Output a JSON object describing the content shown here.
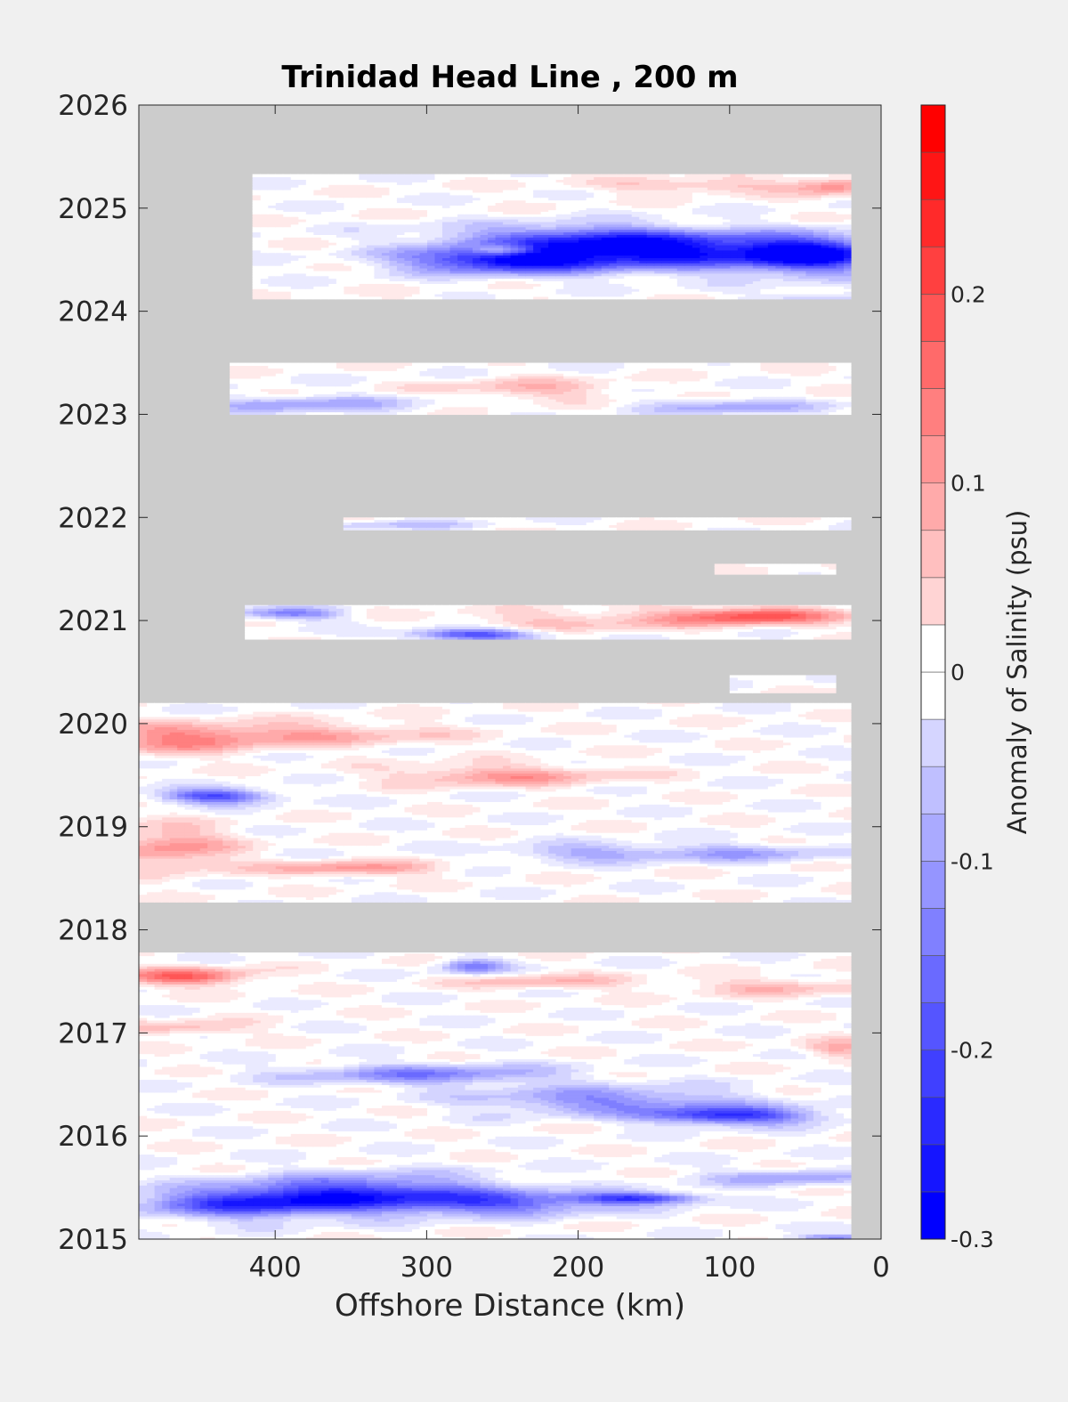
{
  "chart_data": {
    "type": "heatmap",
    "title": "Trinidad Head Line , 200 m",
    "xlabel": "Offshore Distance (km)",
    "ylabel": "",
    "colorbar_label": "Anomaly of Salinity (psu)",
    "x_reversed": true,
    "xlim": [
      490,
      0
    ],
    "ylim": [
      2015,
      2026
    ],
    "x_ticks": [
      "400",
      "300",
      "200",
      "100",
      "0"
    ],
    "x_tick_values": [
      400,
      300,
      200,
      100,
      0
    ],
    "y_ticks": [
      "2015",
      "2016",
      "2017",
      "2018",
      "2019",
      "2020",
      "2021",
      "2022",
      "2023",
      "2024",
      "2025",
      "2026"
    ],
    "y_tick_values": [
      2015,
      2016,
      2017,
      2018,
      2019,
      2020,
      2021,
      2022,
      2023,
      2024,
      2025,
      2026
    ],
    "colorbar": {
      "range": [
        -0.3,
        0.3
      ],
      "step": 0.025,
      "tick_labels": [
        "0.2",
        "0.1",
        "0",
        "-0.1",
        "-0.2",
        "-0.3"
      ],
      "tick_values": [
        0.2,
        0.1,
        0,
        -0.1,
        -0.2,
        -0.3
      ],
      "low_color": "#0000ff",
      "mid_color": "#ffffff",
      "high_color": "#ff0000"
    },
    "missing_color": "#cccccc",
    "grid": false,
    "data_bands": [
      {
        "t0": 2024.98,
        "t1": 2025.33,
        "x_max": 415,
        "x_min": 20
      },
      {
        "t0": 2024.12,
        "t1": 2024.98,
        "x_max": 415,
        "x_min": 20
      },
      {
        "t0": 2023.0,
        "t1": 2023.5,
        "x_max": 430,
        "x_min": 20
      },
      {
        "t0": 2021.88,
        "t1": 2022.0,
        "x_max": 355,
        "x_min": 20
      },
      {
        "t0": 2021.45,
        "t1": 2021.55,
        "x_max": 110,
        "x_min": 30
      },
      {
        "t0": 2020.82,
        "t1": 2021.15,
        "x_max": 420,
        "x_min": 20
      },
      {
        "t0": 2020.3,
        "t1": 2020.47,
        "x_max": 100,
        "x_min": 30
      },
      {
        "t0": 2018.27,
        "t1": 2020.2,
        "x_max": 490,
        "x_min": 20
      },
      {
        "t0": 2015.0,
        "t1": 2017.78,
        "x_max": 490,
        "x_min": 20
      }
    ],
    "anomaly_features": [
      {
        "x": 140,
        "t": 2024.58,
        "sx": 70,
        "st": 0.12,
        "v": -0.28
      },
      {
        "x": 250,
        "t": 2024.5,
        "sx": 45,
        "st": 0.09,
        "v": -0.26
      },
      {
        "x": 45,
        "t": 2024.55,
        "sx": 30,
        "st": 0.12,
        "v": -0.26
      },
      {
        "x": 200,
        "t": 2024.72,
        "sx": 60,
        "st": 0.09,
        "v": -0.15
      },
      {
        "x": 250,
        "t": 2024.6,
        "sx": 15,
        "st": 0.04,
        "v": 0.18
      },
      {
        "x": 280,
        "t": 2023.95,
        "sx": 60,
        "st": 0.08,
        "v": 0.15
      },
      {
        "x": 110,
        "t": 2023.65,
        "sx": 25,
        "st": 0.07,
        "v": 0.16
      },
      {
        "x": 60,
        "t": 2023.65,
        "sx": 20,
        "st": 0.06,
        "v": 0.12
      },
      {
        "x": 40,
        "t": 2024.05,
        "sx": 30,
        "st": 0.08,
        "v": -0.12
      },
      {
        "x": 120,
        "t": 2025.22,
        "sx": 50,
        "st": 0.05,
        "v": 0.08
      },
      {
        "x": 30,
        "t": 2025.22,
        "sx": 20,
        "st": 0.06,
        "v": 0.12
      },
      {
        "x": 230,
        "t": 2023.25,
        "sx": 40,
        "st": 0.07,
        "v": 0.08
      },
      {
        "x": 380,
        "t": 2023.1,
        "sx": 50,
        "st": 0.06,
        "v": -0.1
      },
      {
        "x": 100,
        "t": 2023.08,
        "sx": 40,
        "st": 0.05,
        "v": -0.1
      },
      {
        "x": 85,
        "t": 2021.05,
        "sx": 40,
        "st": 0.06,
        "v": 0.2
      },
      {
        "x": 270,
        "t": 2020.87,
        "sx": 30,
        "st": 0.04,
        "v": -0.22
      },
      {
        "x": 390,
        "t": 2021.07,
        "sx": 25,
        "st": 0.04,
        "v": -0.15
      },
      {
        "x": 200,
        "t": 2021.0,
        "sx": 60,
        "st": 0.07,
        "v": 0.07
      },
      {
        "x": 320,
        "t": 2021.93,
        "sx": 40,
        "st": 0.03,
        "v": -0.06
      },
      {
        "x": 380,
        "t": 2019.9,
        "sx": 60,
        "st": 0.08,
        "v": 0.1
      },
      {
        "x": 470,
        "t": 2019.85,
        "sx": 40,
        "st": 0.1,
        "v": 0.12
      },
      {
        "x": 250,
        "t": 2019.5,
        "sx": 50,
        "st": 0.07,
        "v": 0.12
      },
      {
        "x": 440,
        "t": 2019.3,
        "sx": 25,
        "st": 0.05,
        "v": -0.22
      },
      {
        "x": 470,
        "t": 2018.8,
        "sx": 30,
        "st": 0.15,
        "v": 0.12
      },
      {
        "x": 350,
        "t": 2018.6,
        "sx": 40,
        "st": 0.05,
        "v": 0.12
      },
      {
        "x": 190,
        "t": 2018.75,
        "sx": 40,
        "st": 0.06,
        "v": -0.1
      },
      {
        "x": 90,
        "t": 2018.75,
        "sx": 40,
        "st": 0.06,
        "v": -0.1
      },
      {
        "x": 460,
        "t": 2017.55,
        "sx": 30,
        "st": 0.06,
        "v": 0.18
      },
      {
        "x": 270,
        "t": 2017.65,
        "sx": 15,
        "st": 0.05,
        "v": -0.15
      },
      {
        "x": 220,
        "t": 2017.5,
        "sx": 40,
        "st": 0.05,
        "v": 0.08
      },
      {
        "x": 70,
        "t": 2017.45,
        "sx": 40,
        "st": 0.06,
        "v": 0.08
      },
      {
        "x": 300,
        "t": 2016.6,
        "sx": 60,
        "st": 0.07,
        "v": -0.14
      },
      {
        "x": 180,
        "t": 2016.35,
        "sx": 60,
        "st": 0.09,
        "v": -0.14
      },
      {
        "x": 100,
        "t": 2016.2,
        "sx": 40,
        "st": 0.06,
        "v": -0.24
      },
      {
        "x": 340,
        "t": 2015.45,
        "sx": 60,
        "st": 0.12,
        "v": -0.22
      },
      {
        "x": 420,
        "t": 2015.35,
        "sx": 50,
        "st": 0.1,
        "v": -0.2
      },
      {
        "x": 250,
        "t": 2015.35,
        "sx": 50,
        "st": 0.08,
        "v": -0.16
      },
      {
        "x": 160,
        "t": 2015.4,
        "sx": 30,
        "st": 0.04,
        "v": -0.22
      },
      {
        "x": 60,
        "t": 2015.6,
        "sx": 40,
        "st": 0.06,
        "v": -0.1
      },
      {
        "x": 460,
        "t": 2017.05,
        "sx": 30,
        "st": 0.05,
        "v": 0.08
      },
      {
        "x": 30,
        "t": 2016.85,
        "sx": 15,
        "st": 0.06,
        "v": 0.1
      },
      {
        "x": 30,
        "t": 2015.02,
        "sx": 20,
        "st": 0.02,
        "v": -0.15
      }
    ]
  }
}
